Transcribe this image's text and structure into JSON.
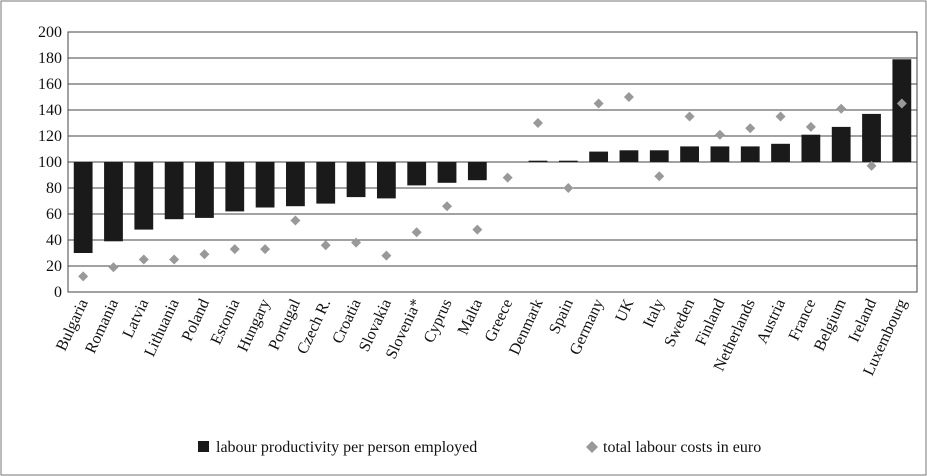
{
  "chart_data": {
    "type": "bar",
    "categories": [
      "Bulgaria",
      "Romania",
      "Latvia",
      "Lithuania",
      "Poland",
      "Estonia",
      "Hungary",
      "Portugal",
      "Czech R.",
      "Croatia",
      "Slovakia",
      "Slovenia*",
      "Cyprus",
      "Malta",
      "Greece",
      "Denmark",
      "Spain",
      "Germany",
      "UK",
      "Italy",
      "Sweden",
      "Finland",
      "Netherlands",
      "Austria",
      "France",
      "Belgium",
      "Ireland",
      "Luxembourg"
    ],
    "baseline": 100,
    "series": [
      {
        "name": "labour productivity per person employed",
        "color": "#1a1a1a",
        "marker": "bar",
        "values": [
          30,
          39,
          48,
          56,
          57,
          62,
          65,
          66,
          68,
          73,
          72,
          82,
          84,
          86,
          null,
          101,
          101,
          108,
          109,
          109,
          112,
          112,
          112,
          114,
          121,
          127,
          137,
          179
        ]
      },
      {
        "name": "total labour costs in euro",
        "color": "#999999",
        "marker": "diamond",
        "values": [
          12,
          19,
          25,
          25,
          29,
          33,
          33,
          55,
          36,
          38,
          28,
          46,
          66,
          48,
          88,
          130,
          80,
          145,
          150,
          89,
          135,
          121,
          126,
          135,
          127,
          141,
          97,
          145
        ]
      }
    ],
    "ylim": [
      0,
      200
    ],
    "yticks": [
      0,
      20,
      40,
      60,
      80,
      100,
      120,
      140,
      160,
      180,
      200
    ],
    "grid": true
  }
}
